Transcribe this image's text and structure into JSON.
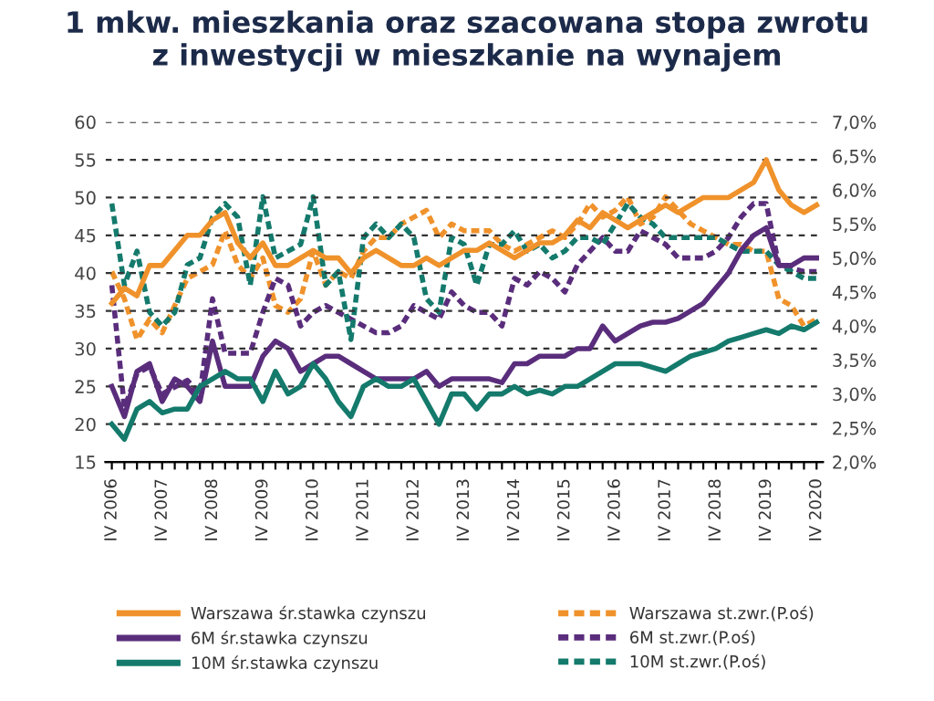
{
  "chart_data": {
    "type": "line",
    "title": "1 mkw. mieszkania oraz szacowana stopa zwrotu\nz inwestycji w mieszkanie na wynajem",
    "categories": [
      "IV 2006",
      null,
      null,
      null,
      "IV 2007",
      null,
      null,
      null,
      "IV 2008",
      null,
      null,
      null,
      "IV 2009",
      null,
      null,
      null,
      "IV 2010",
      null,
      null,
      null,
      "IV 2011",
      null,
      null,
      null,
      "IV 2012",
      null,
      null,
      null,
      "IV 2013",
      null,
      null,
      null,
      "IV 2014",
      null,
      null,
      null,
      "IV 2015",
      null,
      null,
      null,
      "IV 2016",
      null,
      null,
      null,
      "IV 2017",
      null,
      null,
      null,
      "IV 2018",
      null,
      null,
      null,
      "IV 2019",
      null,
      null,
      null,
      "IV 2020"
    ],
    "series": [
      {
        "name": "Warszawa śr.stawka czynszu",
        "color": "#f0922b",
        "line_style": "solid",
        "values": [
          36,
          38,
          37,
          41,
          41,
          43,
          45,
          45,
          47,
          48,
          44,
          42,
          44,
          41,
          41,
          42,
          43,
          42,
          42,
          40,
          42,
          43,
          42,
          41,
          41,
          42,
          41,
          42,
          43,
          43,
          44,
          43,
          42,
          43,
          44,
          44,
          45,
          47,
          46,
          48,
          47,
          46,
          47,
          48,
          49,
          48,
          49,
          50,
          50,
          50,
          51,
          52,
          55,
          51,
          49,
          48,
          49
        ]
      },
      {
        "name": "6M śr.stawka czynszu",
        "color": "#5a2d7c",
        "line_style": "solid",
        "values": [
          25,
          21,
          27,
          28,
          23,
          26,
          25,
          23,
          31,
          25,
          25,
          25,
          29,
          31,
          30,
          27,
          28,
          29,
          29,
          28,
          27,
          26,
          26,
          26,
          26,
          27,
          25,
          26,
          26,
          26,
          26,
          25.5,
          28,
          28,
          29,
          29,
          29,
          30,
          30,
          33,
          31,
          32,
          33,
          33.5,
          33.5,
          34,
          35,
          36,
          38,
          40,
          43,
          45,
          46,
          41,
          41,
          42,
          42
        ]
      },
      {
        "name": "10M śr.stawka czynszu",
        "color": "#147a6c",
        "line_style": "solid",
        "values": [
          20,
          18,
          22,
          23,
          21.5,
          22,
          22,
          25,
          26,
          27,
          26,
          26,
          23,
          27,
          24,
          25,
          28,
          26,
          23,
          21,
          25,
          26,
          25,
          25,
          26,
          23,
          20,
          24,
          24,
          22,
          24,
          24,
          25,
          24,
          24.5,
          24,
          25,
          25,
          26,
          27,
          28,
          28,
          28,
          27.5,
          27,
          28,
          29,
          29.5,
          30,
          31,
          31.5,
          32,
          32.5,
          32,
          33,
          32.5,
          33.5
        ]
      },
      {
        "name": "Warszawa st.zwr.(P.oś)",
        "color": "#f0922b",
        "line_style": "dashed",
        "axis": "y2",
        "values": [
          4.8,
          4.4,
          3.8,
          4.1,
          3.9,
          4.3,
          4.7,
          4.8,
          4.9,
          5.4,
          4.9,
          4.7,
          5.0,
          4.3,
          4.2,
          4.4,
          5.1,
          4.6,
          4.8,
          4.7,
          5.1,
          5.3,
          5.3,
          5.5,
          5.6,
          5.7,
          5.3,
          5.5,
          5.4,
          5.4,
          5.4,
          5.2,
          5.1,
          5.2,
          5.3,
          5.4,
          5.3,
          5.5,
          5.8,
          5.6,
          5.7,
          5.9,
          5.5,
          5.6,
          5.9,
          5.7,
          5.5,
          5.4,
          5.3,
          5.2,
          5.2,
          5.1,
          5.1,
          4.4,
          4.3,
          4.0,
          4.1
        ]
      },
      {
        "name": "6M st.zwr.(P.oś)",
        "color": "#5a2d7c",
        "line_style": "dashed",
        "axis": "y2",
        "values": [
          4.6,
          2.8,
          3.3,
          3.4,
          3.0,
          3.1,
          3.2,
          3.0,
          4.4,
          3.6,
          3.6,
          3.6,
          4.2,
          4.7,
          4.6,
          4.0,
          4.2,
          4.3,
          4.2,
          4.1,
          4.0,
          3.9,
          3.9,
          4.0,
          4.3,
          4.2,
          4.1,
          4.5,
          4.3,
          4.2,
          4.2,
          4.0,
          4.7,
          4.6,
          4.8,
          4.7,
          4.5,
          4.9,
          5.1,
          5.3,
          5.1,
          5.1,
          5.4,
          5.3,
          5.2,
          5.0,
          5.0,
          5.0,
          5.1,
          5.3,
          5.6,
          5.8,
          5.8,
          4.9,
          4.85,
          4.8,
          4.8
        ]
      },
      {
        "name": "10M st.zwr.(P.oś)",
        "color": "#147a6c",
        "line_style": "dashed",
        "axis": "y2",
        "values": [
          5.8,
          4.6,
          5.1,
          4.2,
          4.0,
          4.2,
          4.9,
          5.0,
          5.6,
          5.8,
          5.6,
          4.6,
          5.9,
          5.0,
          5.1,
          5.2,
          5.9,
          4.6,
          4.8,
          3.8,
          5.3,
          5.5,
          5.3,
          5.5,
          5.3,
          4.4,
          4.2,
          5.3,
          5.2,
          4.6,
          5.2,
          5.2,
          5.4,
          5.1,
          5.2,
          5.0,
          5.1,
          5.3,
          5.3,
          5.2,
          5.5,
          5.8,
          5.6,
          5.5,
          5.3,
          5.3,
          5.3,
          5.3,
          5.3,
          5.2,
          5.1,
          5.1,
          5.1,
          4.9,
          4.8,
          4.7,
          4.7
        ]
      }
    ],
    "ylim": [
      15,
      60
    ],
    "yticks": [
      15,
      20,
      25,
      30,
      35,
      40,
      45,
      50,
      55,
      60
    ],
    "y2lim": [
      2.0,
      7.0
    ],
    "y2ticks": [
      {
        "value": 2.0,
        "label": "2,0%"
      },
      {
        "value": 2.5,
        "label": "2,5%"
      },
      {
        "value": 3.0,
        "label": "3,0%"
      },
      {
        "value": 3.5,
        "label": "3,5%"
      },
      {
        "value": 4.0,
        "label": "4,0%"
      },
      {
        "value": 4.5,
        "label": "4,5%"
      },
      {
        "value": 5.0,
        "label": "5,0%"
      },
      {
        "value": 5.5,
        "label": "5,5%"
      },
      {
        "value": 6.0,
        "label": "6,0%"
      },
      {
        "value": 6.5,
        "label": "6,5%"
      },
      {
        "value": 7.0,
        "label": "7,0%"
      }
    ],
    "grid": "y",
    "legend": "bottom"
  }
}
